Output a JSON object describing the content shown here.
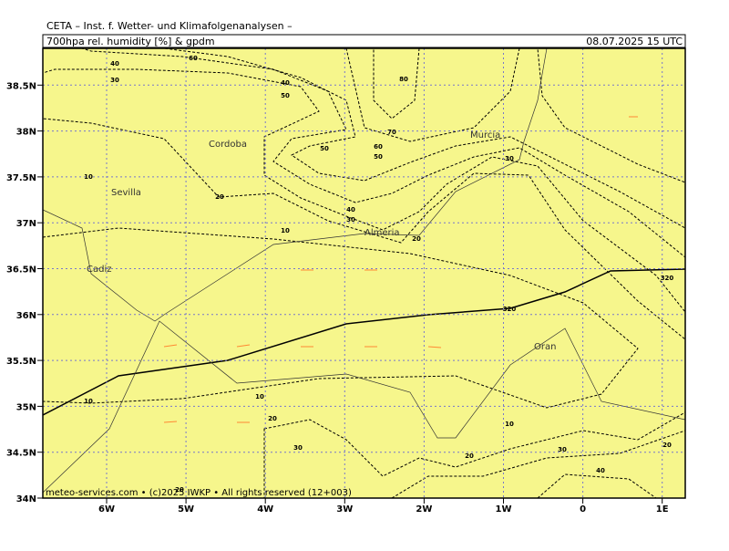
{
  "header": {
    "title": "CETA – Inst. f. Wetter- und Klimafolgenanalysen –",
    "product": "700hpa rel. humidity [%] & gpdm",
    "time": "08.07.2025 15 UTC"
  },
  "lat_ticks": [
    {
      "value": 38.5,
      "label": "38.5N"
    },
    {
      "value": 38,
      "label": "38N"
    },
    {
      "value": 37.5,
      "label": "37.5N"
    },
    {
      "value": 37,
      "label": "37N"
    },
    {
      "value": 36.5,
      "label": "36.5N"
    },
    {
      "value": 36,
      "label": "36N"
    },
    {
      "value": 35.5,
      "label": "35.5N"
    },
    {
      "value": 35,
      "label": "35N"
    },
    {
      "value": 34.5,
      "label": "34.5N"
    },
    {
      "value": 34,
      "label": "34N"
    }
  ],
  "lon_ticks": [
    {
      "value": -6,
      "label": "6W"
    },
    {
      "value": -5,
      "label": "5W"
    },
    {
      "value": -4,
      "label": "4W"
    },
    {
      "value": -3,
      "label": "3W"
    },
    {
      "value": -2,
      "label": "2W"
    },
    {
      "value": -1,
      "label": "1W"
    },
    0,
    {
      "value": 1,
      "label": "1E"
    }
  ],
  "cities": [
    "Cordoba",
    "Sevilla",
    "Cadiz",
    "Almeria",
    "Murcia",
    "Oran"
  ],
  "contour_labels": [
    40,
    30,
    60,
    40,
    50,
    80,
    70,
    60,
    50,
    50,
    30,
    40,
    30,
    10,
    20,
    10,
    20,
    320,
    320,
    10,
    10,
    20,
    30,
    20,
    10,
    30,
    40,
    20,
    20
  ],
  "footer": "meteo-services.com • (c)2025 IWKP • All rights reserved (12+003)"
}
